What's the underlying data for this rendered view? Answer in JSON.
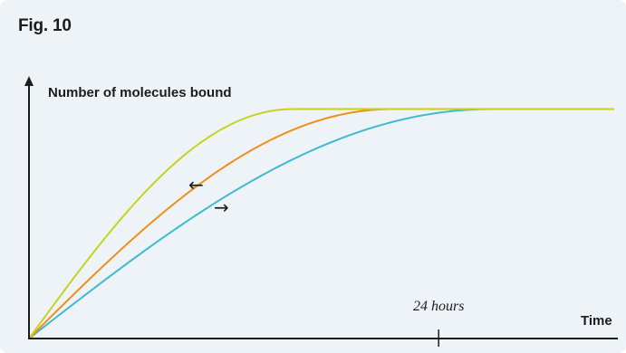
{
  "figure": {
    "label": "Fig. 10"
  },
  "chart_data": {
    "type": "line",
    "ylabel": "Number of molecules bound",
    "xlabel": "Time",
    "annotation": "24 hours",
    "left_arrow": "←",
    "right_arrow": "→",
    "colors": {
      "yellow": "#c8d21e",
      "orange": "#ee8f1a",
      "blue": "#3fbad0",
      "axis": "#1c1c1c"
    },
    "series": [
      {
        "color": "#c8d21e",
        "saturation_time": 0.45
      },
      {
        "color": "#ee8f1a",
        "saturation_time": 0.62
      },
      {
        "color": "#3fbad0",
        "saturation_time": 0.79
      }
    ],
    "xlim": [
      0,
      1.0
    ],
    "ylim": [
      0,
      1.0
    ],
    "saturation_level": 0.88,
    "tick_24h": 0.7
  }
}
